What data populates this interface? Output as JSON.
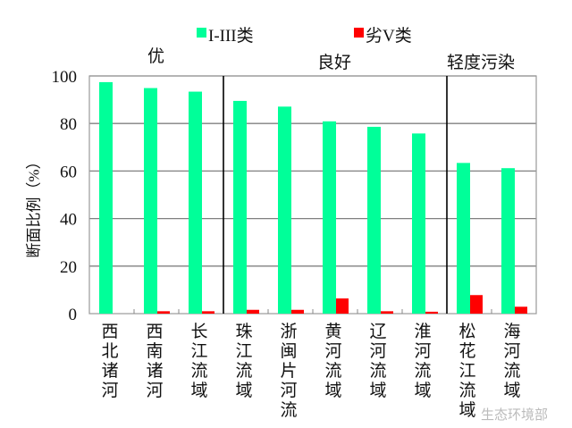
{
  "chart_data": {
    "type": "bar",
    "title": "",
    "xlabel": "",
    "ylabel": "断面比例（%）",
    "ylim": [
      0,
      100
    ],
    "yticks": [
      0,
      20,
      40,
      60,
      80,
      100
    ],
    "grid": true,
    "legend_placement": "top",
    "categories": [
      "西北诸河",
      "西南诸河",
      "长江流域",
      "珠江流域",
      "浙闽片河流",
      "黄河流域",
      "辽河流域",
      "淮河流域",
      "松花江流域",
      "海河流域"
    ],
    "series": [
      {
        "name": "I-III类",
        "color": "#00ff99",
        "values": [
          97.4,
          94.9,
          93.4,
          89.5,
          87.1,
          80.9,
          78.6,
          75.8,
          63.4,
          61.2
        ]
      },
      {
        "name": "劣V类",
        "color": "#ff0000",
        "values": [
          0,
          1.0,
          1.0,
          1.6,
          1.6,
          6.4,
          1.0,
          0.8,
          7.8,
          2.9
        ]
      }
    ],
    "groups": [
      {
        "label": "优",
        "categories": [
          0,
          2
        ]
      },
      {
        "label": "良好",
        "categories": [
          3,
          7
        ]
      },
      {
        "label": "轻度污染",
        "categories": [
          8,
          9
        ]
      }
    ]
  },
  "watermark": "生态环境部"
}
